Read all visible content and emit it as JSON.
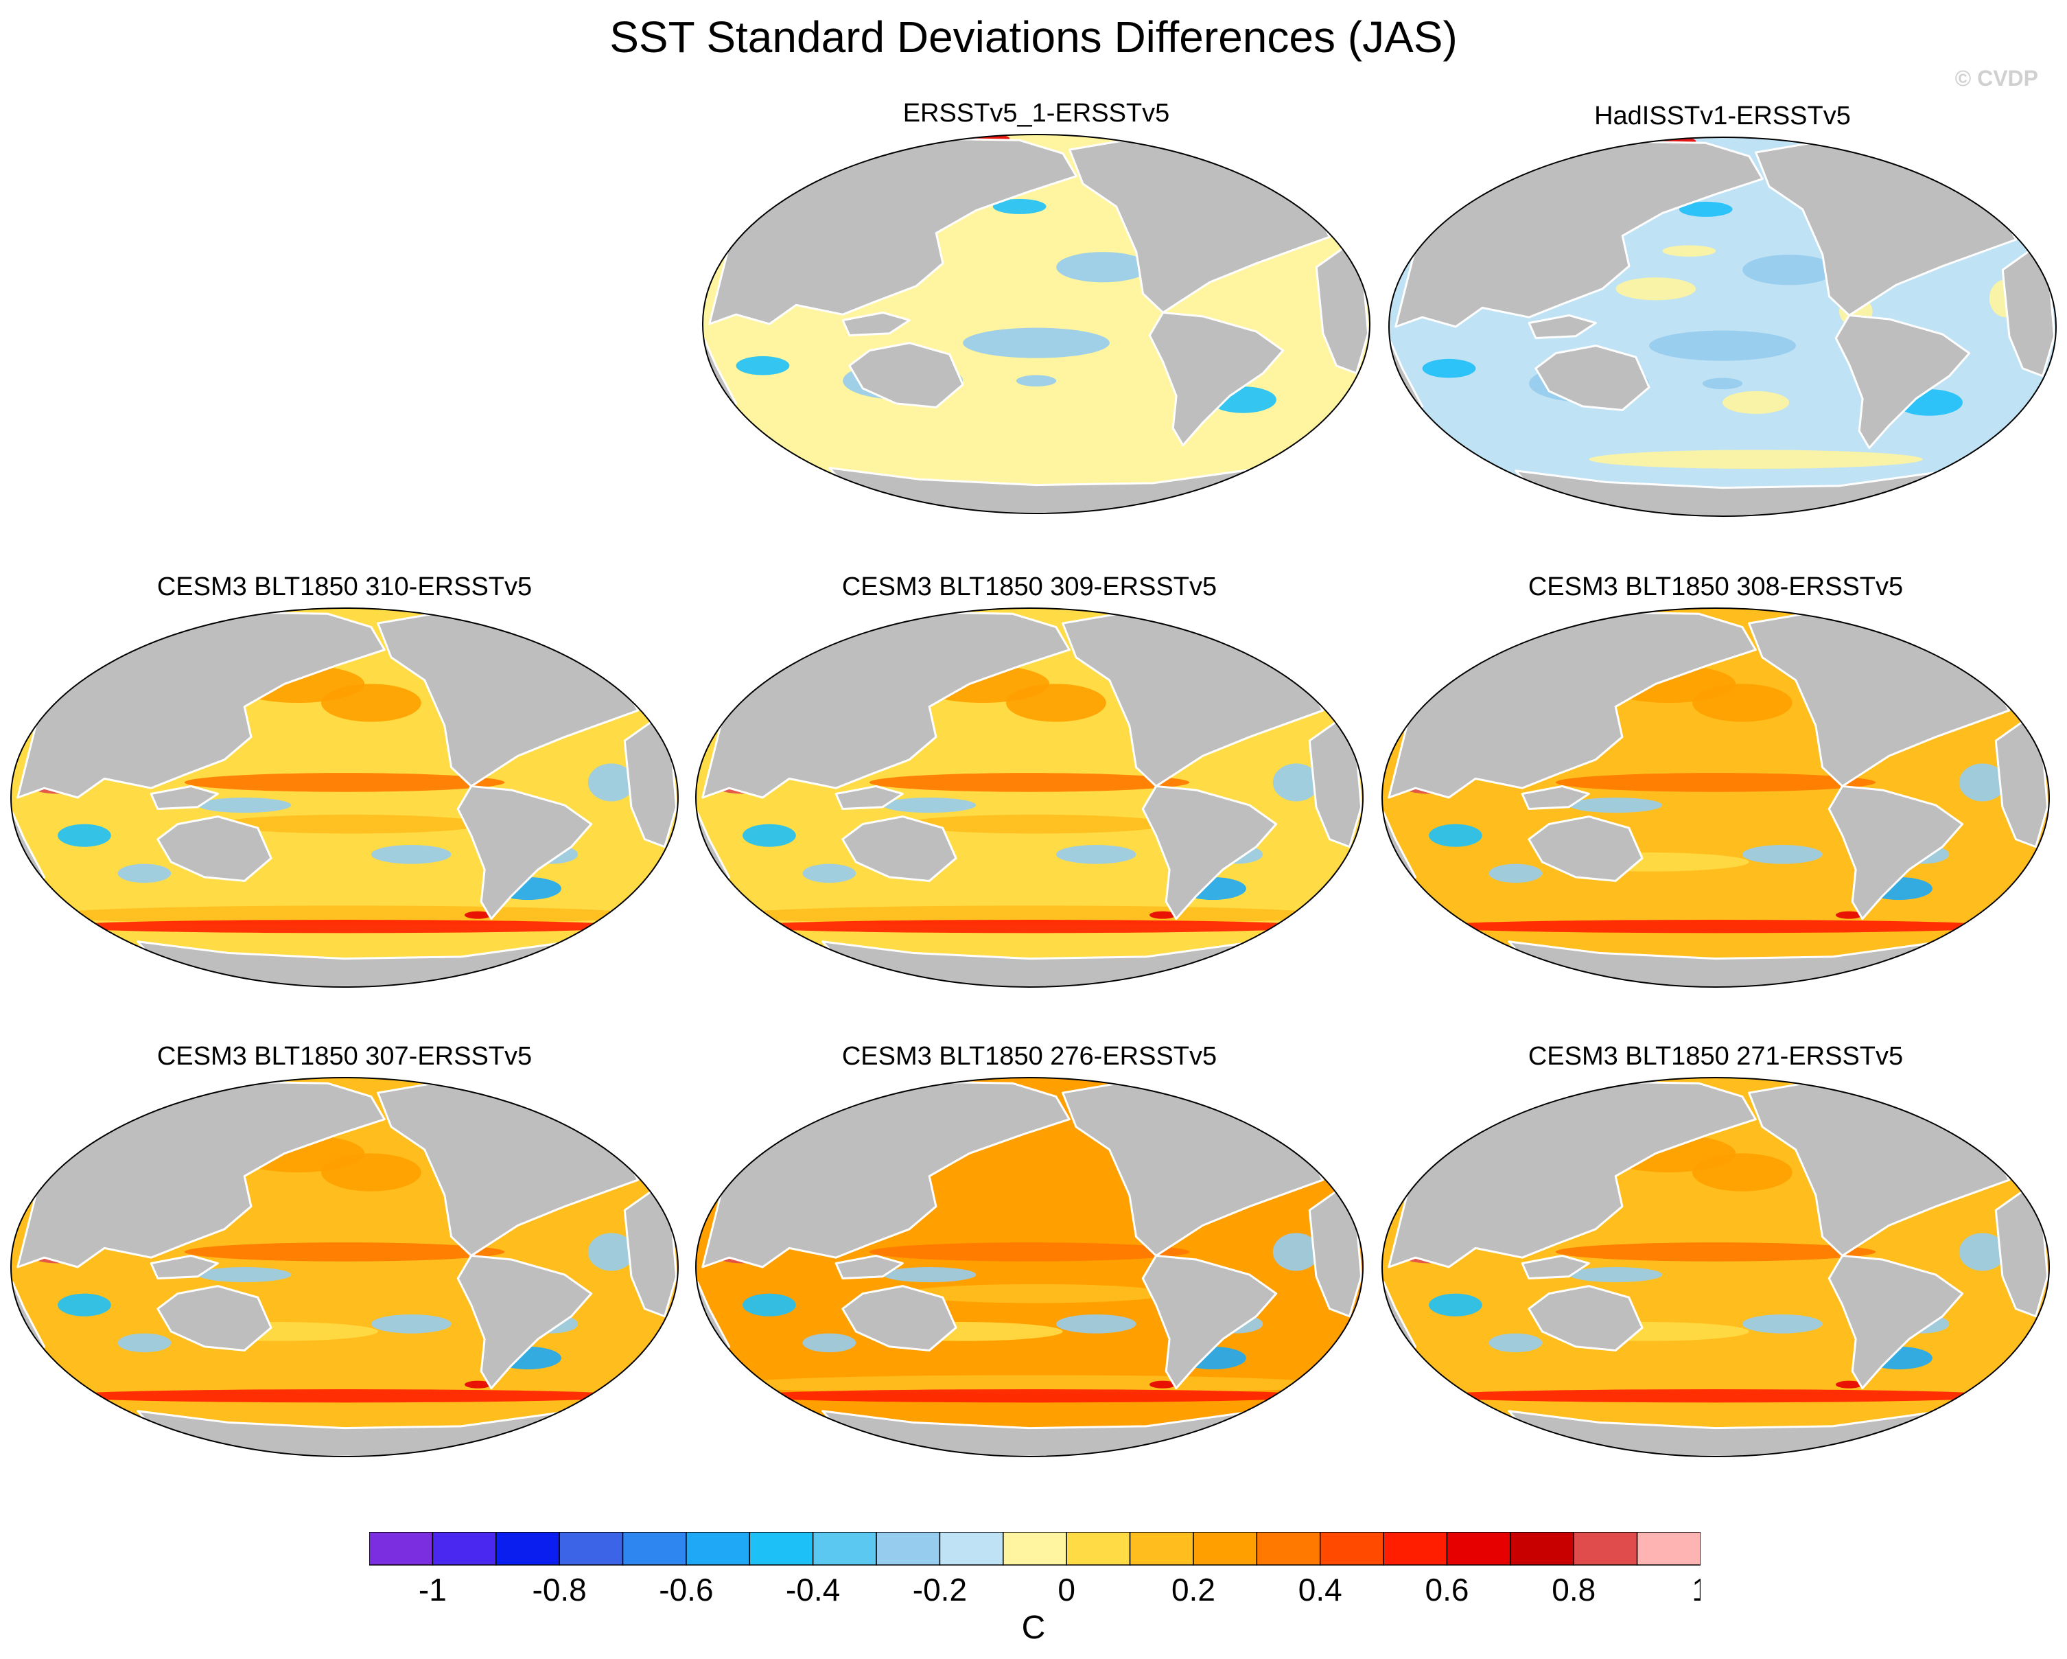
{
  "title": "SST Standard Deviations Differences (JAS)",
  "watermark": "© CVDP",
  "colors": {
    "land": "#bebebe",
    "levels": [
      "#7a2ee0",
      "#4a28f0",
      "#0a1ef0",
      "#3c64e6",
      "#2e86f0",
      "#1ea8f5",
      "#1ec0f8",
      "#5ac8f0",
      "#96ccee",
      "#bfe2f4",
      "#fff5a0",
      "#ffdc46",
      "#ffbe1e",
      "#ffa000",
      "#ff7800",
      "#ff4a00",
      "#ff1e00",
      "#e60000",
      "#c80000",
      "#e04b4b",
      "#ffb4b4"
    ]
  },
  "chart_data": {
    "type": "heatmap",
    "projection": "Robinson-like global map, Pacific-centered",
    "units": "C",
    "colorbar": {
      "label": "C",
      "ticks": [
        "-1",
        "-0.8",
        "-0.6",
        "-0.4",
        "-0.2",
        "0",
        "0.2",
        "0.4",
        "0.6",
        "0.8",
        "1"
      ],
      "range": [
        -1.1,
        1.1
      ],
      "interval": 0.1
    },
    "panels": [
      {
        "title": "ERSSTv5_1-ERSSTv5",
        "pattern": "obs",
        "mean_diff": -0.05
      },
      {
        "title": "HadISSTv1-ERSSTv5",
        "pattern": "obs",
        "mean_diff": -0.15
      },
      {
        "title": "CESM3 BLT1850 310-ERSSTv5",
        "pattern": "model",
        "mean_diff": 0.15
      },
      {
        "title": "CESM3 BLT1850 309-ERSSTv5",
        "pattern": "model",
        "mean_diff": 0.15
      },
      {
        "title": "CESM3 BLT1850 308-ERSSTv5",
        "pattern": "model",
        "mean_diff": 0.2
      },
      {
        "title": "CESM3 BLT1850 307-ERSSTv5",
        "pattern": "model",
        "mean_diff": 0.2
      },
      {
        "title": "CESM3 BLT1850 276-ERSSTv5",
        "pattern": "model",
        "mean_diff": 0.25
      },
      {
        "title": "CESM3 BLT1850 271-ERSSTv5",
        "pattern": "model",
        "mean_diff": 0.2
      }
    ]
  }
}
